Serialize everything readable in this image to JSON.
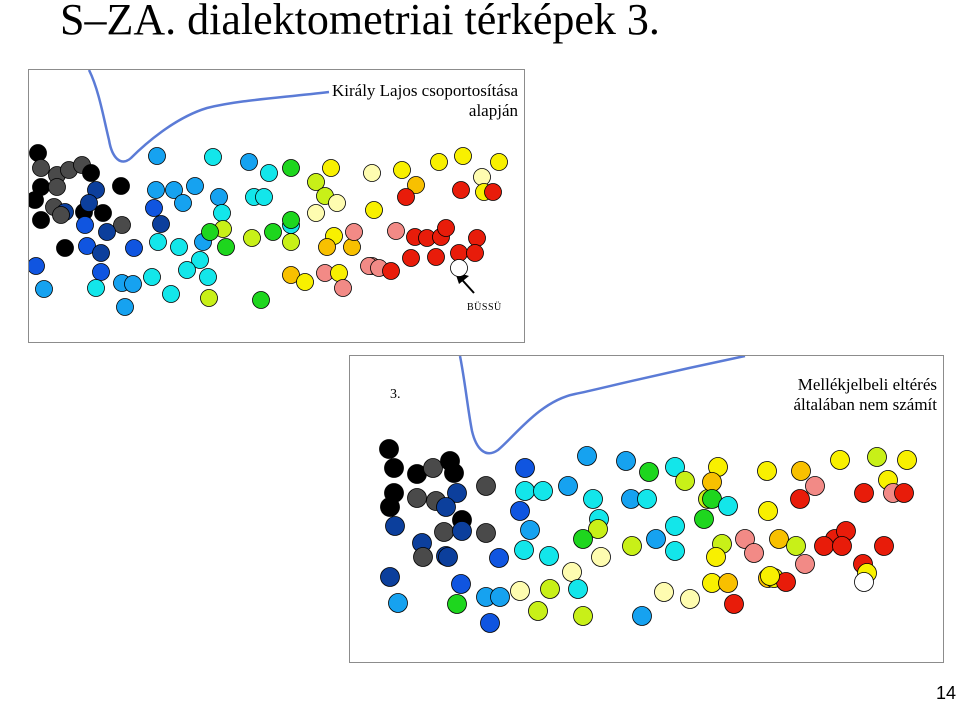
{
  "slide": {
    "title": "S–ZA. dialektometriai térképek 3.",
    "page_number": "14"
  },
  "map_top": {
    "title_line1": "Király Lajos csoportosítása",
    "title_line2": "alapján",
    "place_label": "BÜSSÜ",
    "border_color": "#5b7bd6",
    "pointer_color": "#000000"
  },
  "map_bottom": {
    "number": "3.",
    "title_line1": "Mellékjelbeli eltérés",
    "title_line2": "általában nem számít",
    "border_color": "#5b7bd6"
  },
  "palette": {
    "black": "#000000",
    "darkgray": "#4a4a4a",
    "navy": "#0c3f9c",
    "blue": "#1055e0",
    "skyblue": "#16a2f0",
    "cyan": "#13e6ea",
    "green": "#1ed61e",
    "yellowgreen": "#c8f018",
    "paleyellow": "#fefcb0",
    "yellow": "#f8f000",
    "orange": "#f8c000",
    "pink": "#f28a86",
    "red": "#e81c0a",
    "white": "#ffffff"
  }
}
